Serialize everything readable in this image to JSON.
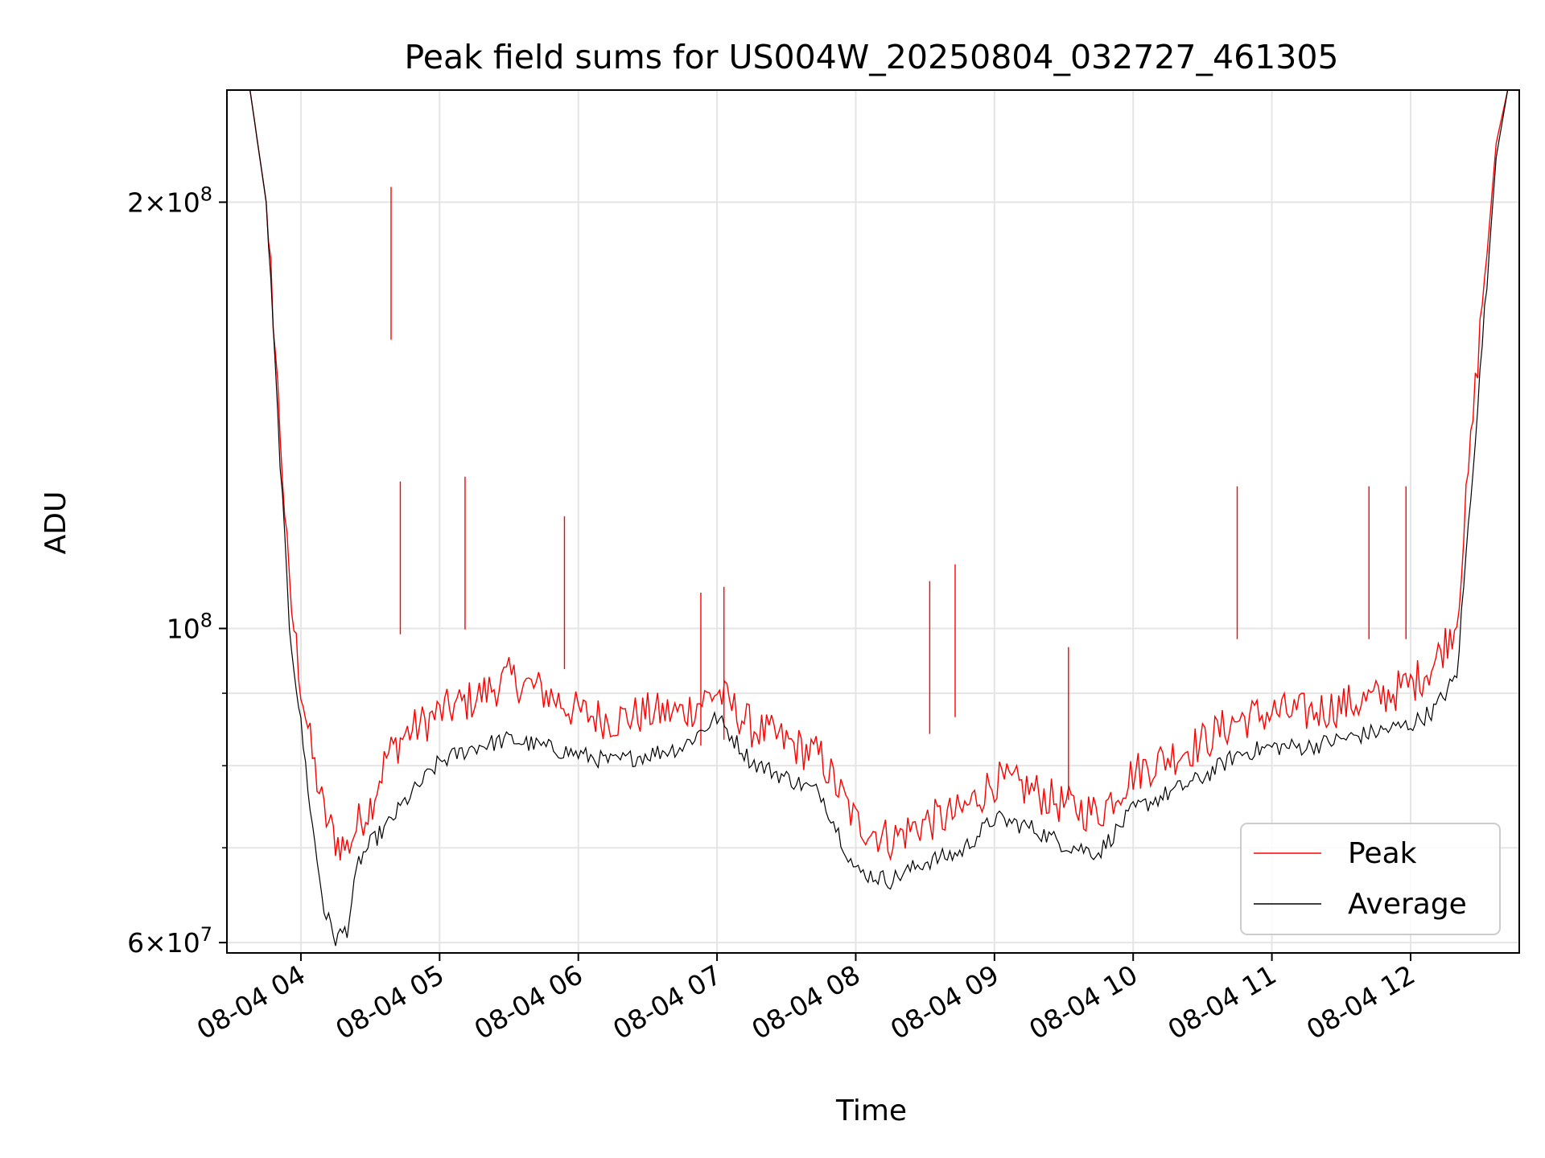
{
  "chart_data": {
    "type": "line",
    "title": "Peak field sums for US004W_20250804_032727_461305",
    "xlabel": "Time",
    "ylabel": "ADU",
    "yscale": "log",
    "grid": true,
    "legend_position": "lower right",
    "x_range": [
      "2025-08-04T03:28",
      "2025-08-04T12:47"
    ],
    "ylim": [
      59000000,
      240000000
    ],
    "x_tick_labels": [
      "08-04 04",
      "08-04 05",
      "08-04 06",
      "08-04 07",
      "08-04 08",
      "08-04 09",
      "08-04 10",
      "08-04 11",
      "08-04 12"
    ],
    "x_ticks": [
      "2025-08-04T04:00",
      "2025-08-04T05:00",
      "2025-08-04T06:00",
      "2025-08-04T07:00",
      "2025-08-04T08:00",
      "2025-08-04T09:00",
      "2025-08-04T10:00",
      "2025-08-04T11:00",
      "2025-08-04T12:00"
    ],
    "y_ticks": [
      {
        "value": 60000000,
        "mantissa": "6",
        "exponent": "7"
      },
      {
        "value": 100000000,
        "mantissa": "",
        "exponent": "8"
      },
      {
        "value": 200000000,
        "mantissa": "2",
        "exponent": "8"
      }
    ],
    "y_minor_ticks": [
      70000000,
      80000000,
      90000000
    ],
    "series": [
      {
        "name": "Peak",
        "color": "#ff0000",
        "x": [
          "2025-08-04T03:28",
          "2025-08-04T03:38",
          "2025-08-04T03:45",
          "2025-08-04T03:50",
          "2025-08-04T03:55",
          "2025-08-04T04:00",
          "2025-08-04T04:05",
          "2025-08-04T04:10",
          "2025-08-04T04:15",
          "2025-08-04T04:20",
          "2025-08-04T04:25",
          "2025-08-04T04:30",
          "2025-08-04T04:37",
          "2025-08-04T04:45",
          "2025-08-04T05:00",
          "2025-08-04T05:15",
          "2025-08-04T05:30",
          "2025-08-04T05:45",
          "2025-08-04T06:00",
          "2025-08-04T06:15",
          "2025-08-04T06:30",
          "2025-08-04T06:45",
          "2025-08-04T07:00",
          "2025-08-04T07:15",
          "2025-08-04T07:30",
          "2025-08-04T07:45",
          "2025-08-04T08:00",
          "2025-08-04T08:15",
          "2025-08-04T08:30",
          "2025-08-04T08:45",
          "2025-08-04T09:00",
          "2025-08-04T09:15",
          "2025-08-04T09:30",
          "2025-08-04T09:45",
          "2025-08-04T10:00",
          "2025-08-04T10:15",
          "2025-08-04T10:30",
          "2025-08-04T10:45",
          "2025-08-04T11:00",
          "2025-08-04T11:15",
          "2025-08-04T11:30",
          "2025-08-04T11:45",
          "2025-08-04T12:00",
          "2025-08-04T12:10",
          "2025-08-04T12:20",
          "2025-08-04T12:30",
          "2025-08-04T12:37",
          "2025-08-04T12:42",
          "2025-08-04T12:47"
        ],
        "y": [
          240000000,
          240000000,
          200000000,
          145000000,
          105000000,
          90000000,
          80000000,
          73000000,
          70000000,
          69000000,
          72000000,
          74000000,
          80000000,
          83000000,
          86000000,
          88000000,
          91000000,
          89000000,
          86000000,
          85000000,
          86000000,
          86000000,
          89000000,
          84000000,
          82000000,
          80000000,
          72000000,
          70000000,
          72000000,
          73000000,
          77000000,
          76000000,
          74000000,
          73000000,
          78000000,
          80000000,
          82000000,
          85000000,
          86000000,
          86000000,
          87000000,
          88000000,
          90000000,
          93000000,
          100000000,
          160000000,
          220000000,
          240000000,
          240000000
        ],
        "spikes": [
          {
            "x": "2025-08-04T04:39",
            "y": 205000000
          },
          {
            "x": "2025-08-04T04:43",
            "y": 127000000
          },
          {
            "x": "2025-08-04T05:11",
            "y": 128000000
          },
          {
            "x": "2025-08-04T05:54",
            "y": 120000000
          },
          {
            "x": "2025-08-04T06:53",
            "y": 106000000
          },
          {
            "x": "2025-08-04T07:03",
            "y": 107000000
          },
          {
            "x": "2025-08-04T08:32",
            "y": 108000000
          },
          {
            "x": "2025-08-04T08:43",
            "y": 111000000
          },
          {
            "x": "2025-08-04T09:32",
            "y": 97000000
          },
          {
            "x": "2025-08-04T10:45",
            "y": 126000000
          },
          {
            "x": "2025-08-04T11:42",
            "y": 126000000
          },
          {
            "x": "2025-08-04T11:58",
            "y": 126000000
          }
        ]
      },
      {
        "name": "Average",
        "color": "#000000",
        "x": [
          "2025-08-04T03:28",
          "2025-08-04T03:38",
          "2025-08-04T03:45",
          "2025-08-04T03:50",
          "2025-08-04T03:55",
          "2025-08-04T04:00",
          "2025-08-04T04:05",
          "2025-08-04T04:10",
          "2025-08-04T04:15",
          "2025-08-04T04:20",
          "2025-08-04T04:25",
          "2025-08-04T04:30",
          "2025-08-04T04:37",
          "2025-08-04T04:45",
          "2025-08-04T05:00",
          "2025-08-04T05:15",
          "2025-08-04T05:30",
          "2025-08-04T05:45",
          "2025-08-04T06:00",
          "2025-08-04T06:15",
          "2025-08-04T06:30",
          "2025-08-04T06:45",
          "2025-08-04T07:00",
          "2025-08-04T07:15",
          "2025-08-04T07:30",
          "2025-08-04T07:45",
          "2025-08-04T08:00",
          "2025-08-04T08:15",
          "2025-08-04T08:30",
          "2025-08-04T08:45",
          "2025-08-04T09:00",
          "2025-08-04T09:15",
          "2025-08-04T09:30",
          "2025-08-04T09:45",
          "2025-08-04T10:00",
          "2025-08-04T10:15",
          "2025-08-04T10:30",
          "2025-08-04T10:45",
          "2025-08-04T11:00",
          "2025-08-04T11:15",
          "2025-08-04T11:30",
          "2025-08-04T11:45",
          "2025-08-04T12:00",
          "2025-08-04T12:10",
          "2025-08-04T12:20",
          "2025-08-04T12:30",
          "2025-08-04T12:37",
          "2025-08-04T12:42",
          "2025-08-04T12:47"
        ],
        "y": [
          240000000,
          240000000,
          200000000,
          140000000,
          100000000,
          85000000,
          72000000,
          63000000,
          60000000,
          61000000,
          68000000,
          70000000,
          72000000,
          75000000,
          80000000,
          82000000,
          83000000,
          82000000,
          81000000,
          80000000,
          81000000,
          82000000,
          86000000,
          80000000,
          78000000,
          76000000,
          67000000,
          66000000,
          68000000,
          69000000,
          73000000,
          72000000,
          70000000,
          69000000,
          74000000,
          76000000,
          78000000,
          81000000,
          82000000,
          82000000,
          83000000,
          84000000,
          85000000,
          87000000,
          92000000,
          150000000,
          215000000,
          240000000,
          240000000
        ]
      }
    ]
  }
}
